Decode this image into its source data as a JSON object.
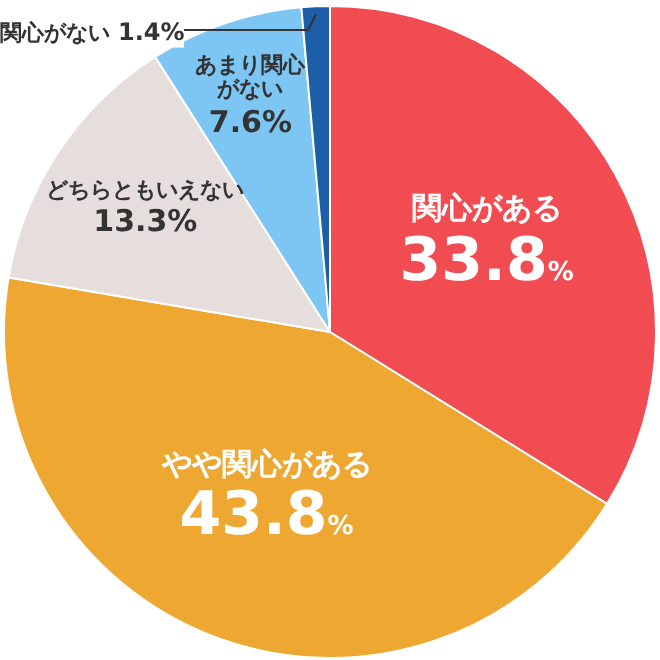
{
  "chart_data": {
    "type": "pie",
    "categories": [
      "関心がある",
      "やや関心がある",
      "どちらともいえない",
      "あまり関心がない",
      "関心がない"
    ],
    "values": [
      33.8,
      43.8,
      13.3,
      7.6,
      1.4
    ],
    "value_labels": [
      "33.8%",
      "43.8%",
      "13.3%",
      "7.6%",
      "1.4%"
    ],
    "colors": [
      "#f24c53",
      "#eea731",
      "#e6dedd",
      "#7dc5f2",
      "#1d5ea8"
    ],
    "legend": false
  }
}
